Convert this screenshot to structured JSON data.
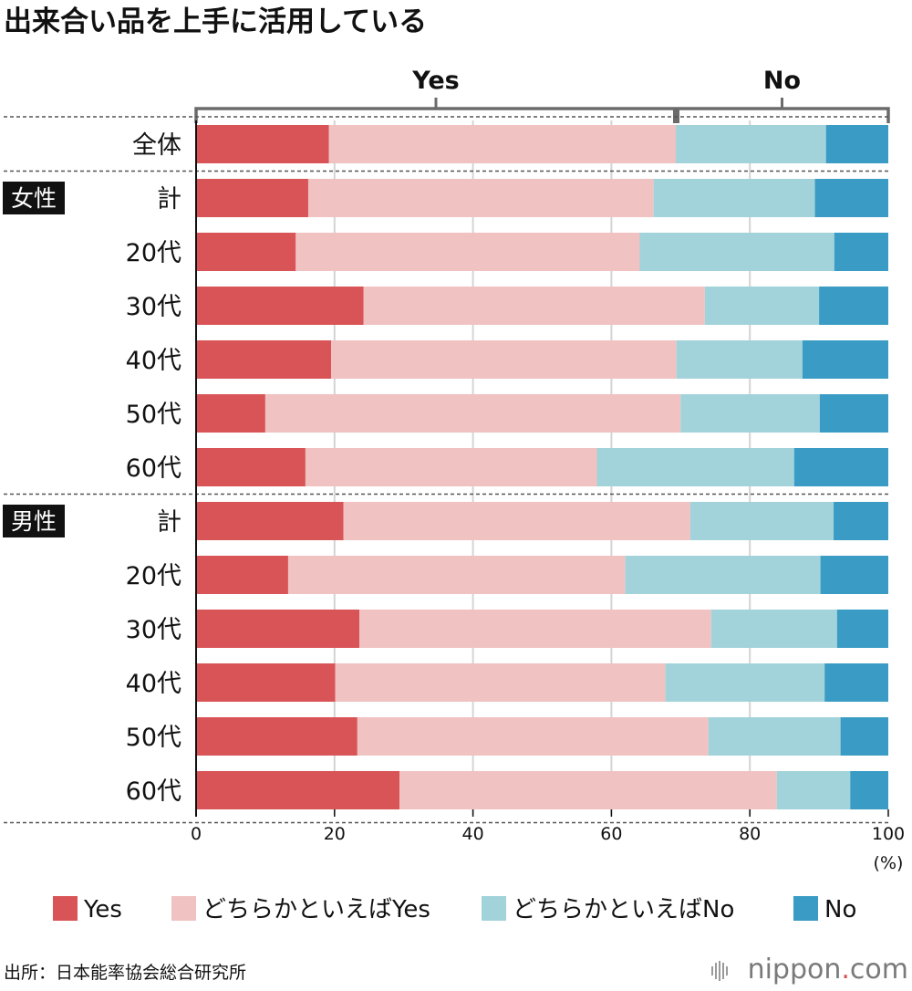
{
  "title": "出来合い品を上手に活用している",
  "bracket_labels": {
    "yes": "Yes",
    "no": "No"
  },
  "colors": {
    "yes": "#d95457",
    "rather_yes": "#f0c2c2",
    "rather_no": "#a3d3da",
    "no": "#3a9cc4",
    "group_bg": "#111111"
  },
  "source": "出所：日本能率協会総合研究所",
  "brand": {
    "main": "nippon",
    "dot": ".",
    "suffix": "com"
  },
  "chart_data": {
    "type": "bar",
    "orientation": "horizontal",
    "stacked": true,
    "title": "出来合い品を上手に活用している",
    "xlim": [
      0,
      100
    ],
    "xticks": [
      "0",
      "20",
      "40",
      "60",
      "80",
      "100"
    ],
    "unit": "(%)",
    "groups": [
      {
        "label": "",
        "rows": [
          "全体"
        ]
      },
      {
        "label": "女性",
        "rows": [
          "計",
          "20代",
          "30代",
          "40代",
          "50代",
          "60代"
        ]
      },
      {
        "label": "男性",
        "rows": [
          "計",
          "20代",
          "30代",
          "40代",
          "50代",
          "60代"
        ]
      }
    ],
    "categories": [
      "全体",
      "計",
      "20代",
      "30代",
      "40代",
      "50代",
      "60代",
      "計",
      "20代",
      "30代",
      "40代",
      "50代",
      "60代"
    ],
    "series": [
      {
        "name": "Yes",
        "values": [
          19.2,
          16.2,
          14.4,
          24.2,
          19.5,
          10.0,
          15.8,
          21.3,
          13.3,
          23.6,
          20.1,
          23.3,
          29.4
        ]
      },
      {
        "name": "どちらかといえばYes",
        "values": [
          50.1,
          49.9,
          49.7,
          49.3,
          49.9,
          60.0,
          42.1,
          50.1,
          48.7,
          50.8,
          47.7,
          50.7,
          54.5
        ]
      },
      {
        "name": "どちらかといえばNo",
        "values": [
          21.7,
          23.3,
          28.1,
          16.5,
          18.2,
          20.1,
          28.5,
          20.7,
          28.2,
          18.2,
          23.0,
          19.1,
          10.6
        ]
      },
      {
        "name": "No",
        "values": [
          9.0,
          10.6,
          7.8,
          10.0,
          12.4,
          9.9,
          13.6,
          7.9,
          9.8,
          7.4,
          9.2,
          6.9,
          5.5
        ]
      }
    ]
  }
}
